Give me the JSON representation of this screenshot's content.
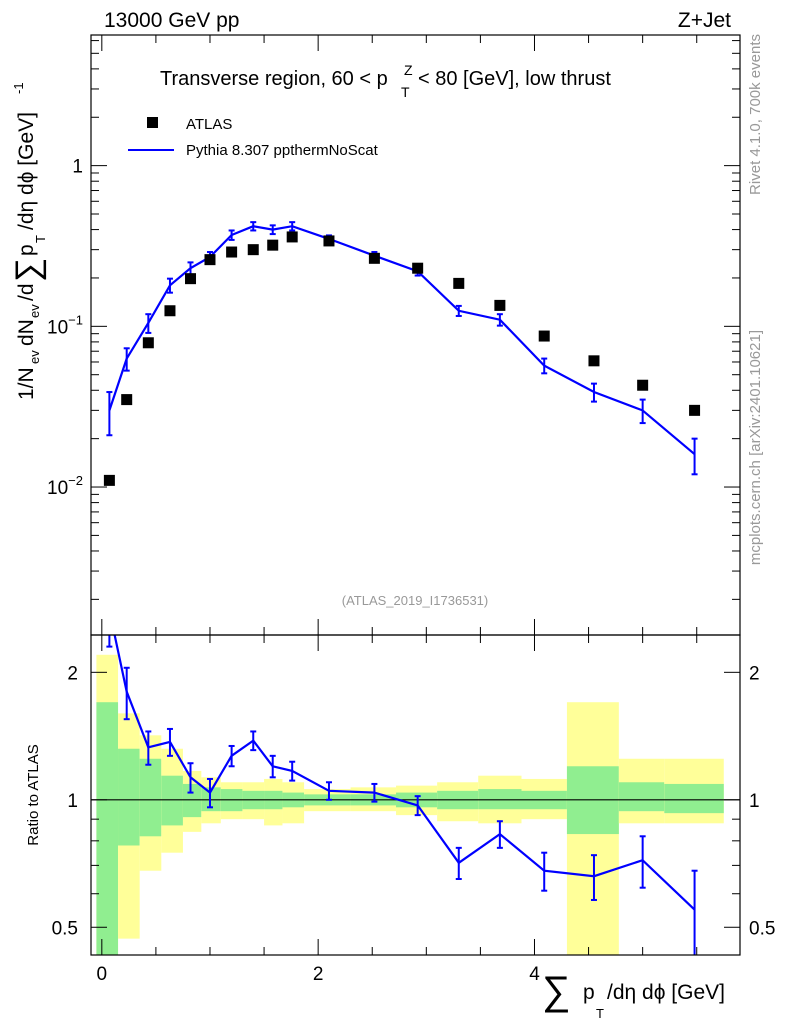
{
  "header": {
    "left": "13000 GeV pp",
    "right": "Z+Jet",
    "side_top": "Rivet 4.1.0,  700k events",
    "side_bottom": "mcplots.cern.ch [arXiv:2401.10621]",
    "analysis": "(ATLAS_2019_I1736531)"
  },
  "chart_data": [
    {
      "type": "scatter",
      "title": "Transverse region, 60 < p_T^Z < 80 [GeV], low thrust",
      "ylabel": "1/N_ev dN_ev/d∑p_T/dη dϕ [GeV]^-1",
      "yscale": "log",
      "ylim": [
        0.0012,
        6.5
      ],
      "xlim": [
        -0.1,
        5.9
      ],
      "ytick_labels": [
        "10^-2",
        "10^-1",
        "1"
      ],
      "ytick_values": [
        0.01,
        0.1,
        1
      ],
      "legend": [
        "ATLAS",
        "Pythia 8.307 ppthermNoScat"
      ],
      "series": [
        {
          "name": "ATLAS",
          "style": "markers",
          "x": [
            0.07,
            0.23,
            0.43,
            0.63,
            0.82,
            1.0,
            1.2,
            1.4,
            1.58,
            1.76,
            2.1,
            2.52,
            2.92,
            3.3,
            3.68,
            4.09,
            4.55,
            5.0,
            5.48
          ],
          "y": [
            0.011,
            0.035,
            0.079,
            0.125,
            0.198,
            0.26,
            0.29,
            0.3,
            0.32,
            0.36,
            0.34,
            0.265,
            0.23,
            0.185,
            0.135,
            0.087,
            0.061,
            0.043,
            0.03
          ]
        },
        {
          "name": "Pythia 8.307 ppthermNoScat",
          "style": "line",
          "x": [
            0.07,
            0.23,
            0.43,
            0.63,
            0.82,
            1.0,
            1.2,
            1.4,
            1.58,
            1.76,
            2.1,
            2.52,
            2.92,
            3.3,
            3.68,
            4.09,
            4.55,
            5.0,
            5.48
          ],
          "y": [
            0.03,
            0.063,
            0.105,
            0.18,
            0.23,
            0.27,
            0.37,
            0.42,
            0.4,
            0.42,
            0.35,
            0.275,
            0.22,
            0.125,
            0.11,
            0.057,
            0.039,
            0.03,
            0.016
          ],
          "err": [
            0.009,
            0.01,
            0.014,
            0.018,
            0.02,
            0.02,
            0.025,
            0.025,
            0.025,
            0.025,
            0.018,
            0.015,
            0.013,
            0.009,
            0.009,
            0.006,
            0.005,
            0.005,
            0.004
          ]
        }
      ]
    },
    {
      "type": "line",
      "ylabel": "Ratio to ATLAS",
      "xlabel": "∑p_T/dη dϕ [GeV]",
      "yscale": "log",
      "ylim": [
        0.43,
        2.45
      ],
      "xlim": [
        -0.1,
        5.9
      ],
      "xtick_labels": [
        "0",
        "2",
        "4"
      ],
      "xtick_values": [
        0,
        2,
        4
      ],
      "ytick_labels": [
        "0.5",
        "1",
        "2"
      ],
      "ytick_values": [
        0.5,
        1,
        2
      ],
      "bins": [
        -0.05,
        0.15,
        0.35,
        0.55,
        0.75,
        0.92,
        1.1,
        1.3,
        1.5,
        1.67,
        1.87,
        2.3,
        2.72,
        3.1,
        3.48,
        3.88,
        4.3,
        4.78,
        5.2,
        5.75
      ],
      "band_inner": [
        [
          0.3,
          1.7
        ],
        [
          0.78,
          1.32
        ],
        [
          0.82,
          1.25
        ],
        [
          0.87,
          1.14
        ],
        [
          0.91,
          1.09
        ],
        [
          0.94,
          1.07
        ],
        [
          0.94,
          1.06
        ],
        [
          0.95,
          1.05
        ],
        [
          0.95,
          1.05
        ],
        [
          0.96,
          1.04
        ],
        [
          0.97,
          1.03
        ],
        [
          0.97,
          1.03
        ],
        [
          0.96,
          1.04
        ],
        [
          0.95,
          1.05
        ],
        [
          0.95,
          1.06
        ],
        [
          0.95,
          1.05
        ],
        [
          0.83,
          1.2
        ],
        [
          0.94,
          1.1
        ],
        [
          0.93,
          1.09
        ]
      ],
      "band_outer": [
        [
          0.25,
          2.2
        ],
        [
          0.47,
          1.6
        ],
        [
          0.68,
          1.42
        ],
        [
          0.75,
          1.32
        ],
        [
          0.84,
          1.17
        ],
        [
          0.88,
          1.13
        ],
        [
          0.9,
          1.1
        ],
        [
          0.9,
          1.1
        ],
        [
          0.87,
          1.12
        ],
        [
          0.88,
          1.1
        ],
        [
          0.94,
          1.06
        ],
        [
          0.94,
          1.07
        ],
        [
          0.92,
          1.08
        ],
        [
          0.89,
          1.1
        ],
        [
          0.88,
          1.14
        ],
        [
          0.9,
          1.12
        ],
        [
          0.31,
          1.7
        ],
        [
          0.88,
          1.25
        ],
        [
          0.88,
          1.25
        ]
      ],
      "series": [
        {
          "name": "Pythia 8.307 ppthermNoScat / ATLAS",
          "x": [
            0.07,
            0.23,
            0.43,
            0.63,
            0.82,
            1.0,
            1.2,
            1.4,
            1.58,
            1.76,
            2.1,
            2.52,
            2.92,
            3.3,
            3.68,
            4.09,
            4.55,
            5.0,
            5.48
          ],
          "y": [
            2.8,
            1.8,
            1.33,
            1.37,
            1.13,
            1.04,
            1.27,
            1.38,
            1.2,
            1.17,
            1.05,
            1.04,
            0.97,
            0.71,
            0.83,
            0.68,
            0.66,
            0.72,
            0.55
          ],
          "err": [
            0.5,
            0.25,
            0.12,
            0.1,
            0.09,
            0.08,
            0.07,
            0.07,
            0.07,
            0.06,
            0.05,
            0.05,
            0.05,
            0.06,
            0.06,
            0.07,
            0.08,
            0.1,
            0.13
          ]
        }
      ]
    }
  ]
}
